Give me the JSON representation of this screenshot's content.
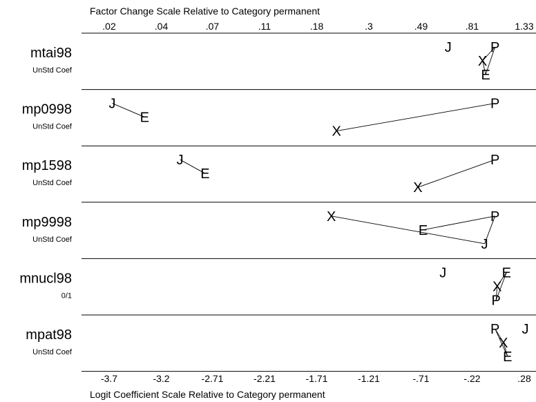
{
  "chart_data": {
    "type": "factor-change",
    "top_axis_title": "Factor Change Scale Relative to Category permanent",
    "bottom_axis_title": "Logit Coefficient Scale Relative to Category permanent",
    "top_ticks": [
      ".02",
      ".04",
      ".07",
      ".11",
      ".18",
      ".3",
      ".49",
      ".81",
      "1.33"
    ],
    "bottom_ticks": [
      {
        "label": "-3.7",
        "value": -3.7
      },
      {
        "label": "-3.2",
        "value": -3.2
      },
      {
        "label": "-2.71",
        "value": -2.71
      },
      {
        "label": "-2.21",
        "value": -2.21
      },
      {
        "label": "-1.71",
        "value": -1.71
      },
      {
        "label": "-1.21",
        "value": -1.21
      },
      {
        "label": "-.71",
        "value": -0.71
      },
      {
        "label": "-.22",
        "value": -0.22
      },
      {
        "label": ".28",
        "value": 0.28
      }
    ],
    "xlim": [
      -3.7,
      0.28
    ],
    "variables": [
      {
        "name": "mtai98",
        "subtitle": "UnStd Coef",
        "points": [
          {
            "letter": "J",
            "x": -0.45,
            "level": 0
          },
          {
            "letter": "P",
            "x": 0.0,
            "level": 0
          },
          {
            "letter": "X",
            "x": -0.12,
            "level": 1
          },
          {
            "letter": "E",
            "x": -0.09,
            "level": 2
          }
        ],
        "links": [
          [
            "P",
            "X"
          ],
          [
            "X",
            "E"
          ],
          [
            "P",
            "E"
          ]
        ]
      },
      {
        "name": "mp0998",
        "subtitle": "UnStd Coef",
        "points": [
          {
            "letter": "J",
            "x": -3.67,
            "level": 0
          },
          {
            "letter": "E",
            "x": -3.36,
            "level": 1
          },
          {
            "letter": "P",
            "x": 0.0,
            "level": 0
          },
          {
            "letter": "X",
            "x": -1.52,
            "level": 2
          }
        ],
        "links": [
          [
            "J",
            "E"
          ],
          [
            "P",
            "X"
          ]
        ]
      },
      {
        "name": "mp1598",
        "subtitle": "UnStd Coef",
        "points": [
          {
            "letter": "J",
            "x": -3.02,
            "level": 0
          },
          {
            "letter": "E",
            "x": -2.78,
            "level": 1
          },
          {
            "letter": "P",
            "x": 0.0,
            "level": 0
          },
          {
            "letter": "X",
            "x": -0.74,
            "level": 2
          }
        ],
        "links": [
          [
            "J",
            "E"
          ],
          [
            "P",
            "X"
          ]
        ]
      },
      {
        "name": "mp9998",
        "subtitle": "UnStd Coef",
        "points": [
          {
            "letter": "X",
            "x": -1.57,
            "level": 0
          },
          {
            "letter": "P",
            "x": 0.0,
            "level": 0
          },
          {
            "letter": "E",
            "x": -0.69,
            "level": 1
          },
          {
            "letter": "J",
            "x": -0.1,
            "level": 2
          }
        ],
        "links": [
          [
            "X",
            "J"
          ],
          [
            "E",
            "P"
          ],
          [
            "P",
            "J"
          ]
        ]
      },
      {
        "name": "mnucl98",
        "subtitle": "0/1",
        "points": [
          {
            "letter": "J",
            "x": -0.5,
            "level": 0
          },
          {
            "letter": "E",
            "x": 0.11,
            "level": 0
          },
          {
            "letter": "X",
            "x": 0.02,
            "level": 1
          },
          {
            "letter": "P",
            "x": 0.01,
            "level": 2
          }
        ],
        "links": [
          [
            "E",
            "X"
          ],
          [
            "X",
            "P"
          ],
          [
            "E",
            "P"
          ]
        ]
      },
      {
        "name": "mpat98",
        "subtitle": "UnStd Coef",
        "points": [
          {
            "letter": "P",
            "x": 0.0,
            "level": 0
          },
          {
            "letter": "J",
            "x": 0.29,
            "level": 0
          },
          {
            "letter": "X",
            "x": 0.08,
            "level": 1
          },
          {
            "letter": "E",
            "x": 0.12,
            "level": 2
          }
        ],
        "links": [
          [
            "P",
            "X"
          ],
          [
            "X",
            "E"
          ],
          [
            "P",
            "E"
          ]
        ]
      }
    ]
  }
}
